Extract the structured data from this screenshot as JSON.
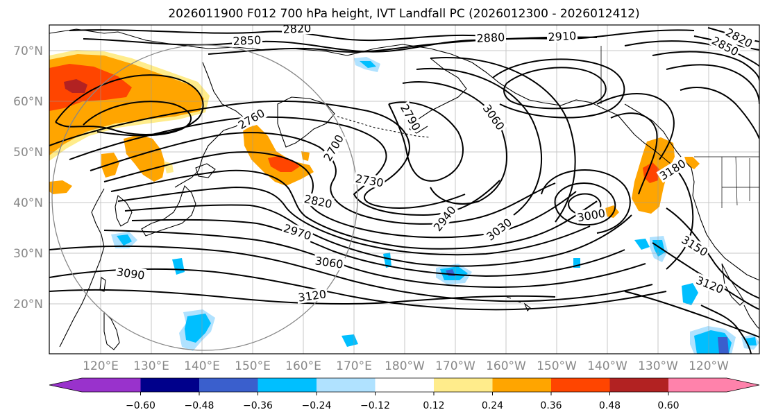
{
  "title": "2026011900 F012 700 hPa height, IVT Landfall PC (2026012300 - 2026012412)",
  "lat_labels": [
    "70°N",
    "60°N",
    "50°N",
    "40°N",
    "30°N",
    "20°N"
  ],
  "lon_labels": [
    "120°E",
    "130°E",
    "140°E",
    "150°E",
    "160°E",
    "170°E",
    "180°W",
    "170°W",
    "160°W",
    "150°W",
    "140°W",
    "130°W",
    "120°W"
  ],
  "contour_labels": [
    "2820",
    "2850",
    "2880",
    "2910",
    "2820",
    "2850",
    "2760",
    "2700",
    "2790",
    "3060",
    "2730",
    "2820",
    "2940",
    "3030",
    "3000",
    "2970",
    "3060",
    "3090",
    "3120",
    "3180",
    "3150",
    "3120"
  ],
  "colorbar": {
    "colors": [
      "#9932CC",
      "#00008B",
      "#3A5FCD",
      "#00BFFF",
      "#B0E2FF",
      "#FFFFFF",
      "#FFEC8B",
      "#FFA500",
      "#FF4500",
      "#B22222",
      "#FF82AB"
    ],
    "tick_labels": [
      "−0.60",
      "−0.48",
      "−0.36",
      "−0.24",
      "−0.12",
      "0.12",
      "0.24",
      "0.36",
      "0.48",
      "0.60"
    ]
  },
  "palette": {
    "yellow": "#FFEC8B",
    "orange": "#FFA500",
    "red_orange": "#FF4500",
    "dark_red": "#B22222",
    "light_blue": "#B0E2FF",
    "deep_sky": "#00BFFF",
    "royal_blue": "#3A5FCD"
  }
}
